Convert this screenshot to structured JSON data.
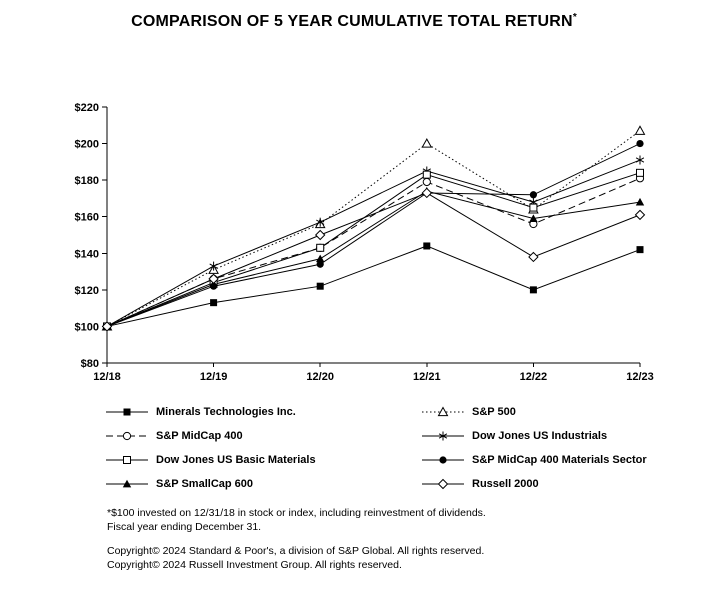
{
  "title": "COMPARISON OF 5 YEAR CUMULATIVE TOTAL RETURN",
  "title_superscript": "*",
  "chart_data": {
    "type": "line",
    "x": [
      "12/18",
      "12/19",
      "12/20",
      "12/21",
      "12/22",
      "12/23"
    ],
    "ylim": [
      80,
      220
    ],
    "ytick_interval": 20,
    "ytick_prefix": "$",
    "grid": false,
    "legend_position": "below-two-columns",
    "series": [
      {
        "name": "Minerals Technologies Inc.",
        "marker": "filled-square",
        "line": "solid",
        "values": [
          100,
          113,
          122,
          144,
          120,
          142
        ]
      },
      {
        "name": "S&P 500",
        "marker": "open-triangle",
        "line": "dotted",
        "values": [
          100,
          131,
          156,
          200,
          164,
          207
        ]
      },
      {
        "name": "S&P MidCap 400",
        "marker": "open-circle",
        "line": "dashed",
        "values": [
          100,
          126,
          143,
          179,
          156,
          181
        ]
      },
      {
        "name": "Dow Jones US Industrials",
        "marker": "asterisk",
        "line": "solid",
        "values": [
          100,
          133,
          157,
          185,
          168,
          191
        ]
      },
      {
        "name": "Dow Jones US Basic Materials",
        "marker": "open-square",
        "line": "solid",
        "values": [
          100,
          124,
          143,
          183,
          165,
          184
        ]
      },
      {
        "name": "S&P MidCap 400 Materials Sector",
        "marker": "filled-circle",
        "line": "solid",
        "values": [
          100,
          122,
          134,
          173,
          172,
          200
        ]
      },
      {
        "name": "S&P SmallCap 600",
        "marker": "filled-triangle",
        "line": "solid",
        "values": [
          100,
          123,
          137,
          174,
          159,
          168
        ]
      },
      {
        "name": "Russell 2000",
        "marker": "open-diamond",
        "line": "solid",
        "values": [
          100,
          126,
          150,
          173,
          138,
          161
        ]
      }
    ]
  },
  "notes": [
    "*$100 invested on 12/31/18 in stock or index, including reinvestment of dividends.",
    "Fiscal year ending December 31."
  ],
  "copyright": [
    "Copyright© 2024 Standard & Poor's, a division of S&P Global. All rights reserved.",
    "Copyright© 2024 Russell Investment Group. All rights reserved."
  ]
}
